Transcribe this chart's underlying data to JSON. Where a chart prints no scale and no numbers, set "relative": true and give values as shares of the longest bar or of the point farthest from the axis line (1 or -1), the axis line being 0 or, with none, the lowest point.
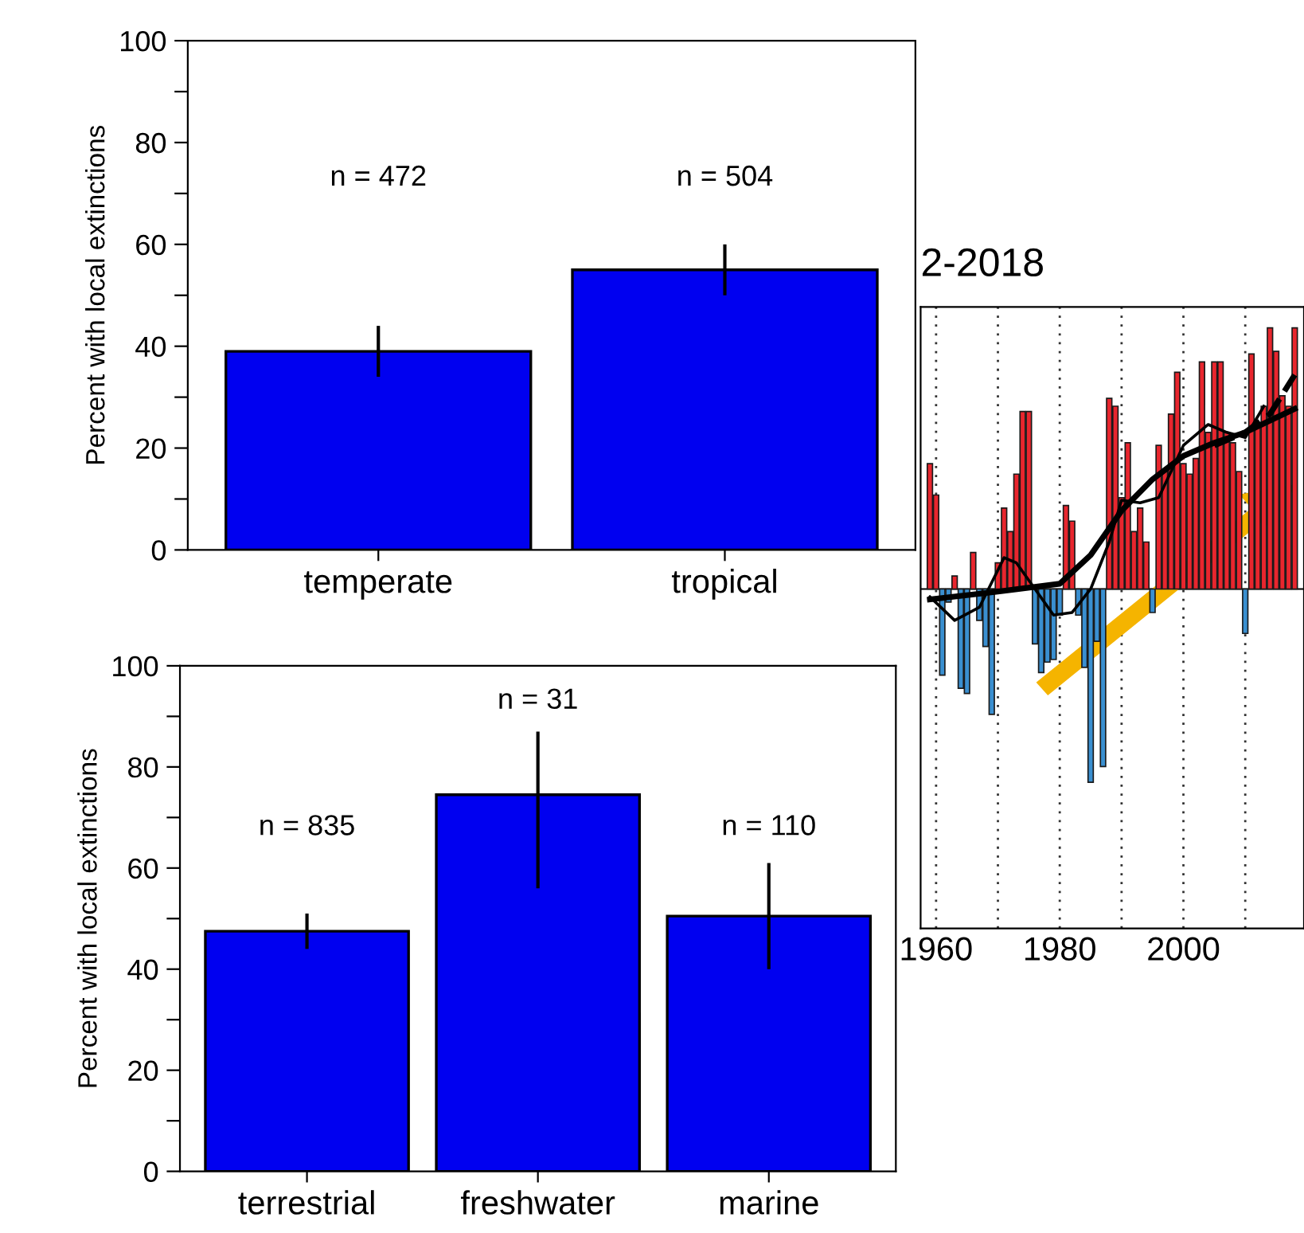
{
  "chart_data": [
    {
      "type": "bar",
      "ylabel": "Percent with local extinctions",
      "categories": [
        "temperate",
        "tropical"
      ],
      "series": [
        {
          "color": "#0000f0",
          "values": [
            39,
            55
          ],
          "errors": [
            [
              34,
              44
            ],
            [
              50,
              60
            ]
          ]
        }
      ],
      "ylim": [
        0,
        100
      ],
      "yticks": [
        0,
        {
          "value": 10,
          "label": null
        },
        20,
        {
          "value": 30,
          "label": null
        },
        40,
        {
          "value": 50,
          "label": null
        },
        60,
        {
          "value": 70,
          "label": null
        },
        80,
        {
          "value": 90,
          "label": null
        },
        100
      ],
      "annotations": [
        "n = 472",
        "n = 504"
      ],
      "grid": false,
      "legend": false
    },
    {
      "type": "bar",
      "ylabel": "Percent with local extinctions",
      "categories": [
        "terrestrial",
        "freshwater",
        "marine"
      ],
      "series": [
        {
          "color": "#0000f0",
          "values": [
            47.5,
            74.5,
            50.5
          ],
          "errors": [
            [
              44,
              51
            ],
            [
              56,
              87
            ],
            [
              40,
              61
            ]
          ]
        }
      ],
      "ylim": [
        0,
        100
      ],
      "yticks": [
        0,
        {
          "value": 10,
          "label": null
        },
        20,
        {
          "value": 30,
          "label": null
        },
        40,
        {
          "value": 50,
          "label": null
        },
        60,
        {
          "value": 70,
          "label": null
        },
        80,
        {
          "value": 90,
          "label": null
        },
        100
      ],
      "annotations": [
        "n = 835",
        "n = 31",
        "n = 110"
      ],
      "grid": false,
      "legend": false
    },
    {
      "type": "bar",
      "title": "2-2018",
      "relative": true,
      "grid": "x",
      "legend": false,
      "tick_labels": "x",
      "xlim": [
        1957.5,
        2019.5
      ],
      "xticks": [
        1960,
        {
          "value": 1970,
          "label": null
        },
        1980,
        {
          "value": 1990,
          "label": null
        },
        2000,
        {
          "value": 2010,
          "label": null
        }
      ],
      "x": [
        1959,
        1960,
        1961,
        1962,
        1963,
        1964,
        1965,
        1966,
        1967,
        1968,
        1969,
        1970,
        1971,
        1972,
        1973,
        1974,
        1975,
        1976,
        1977,
        1978,
        1979,
        1980,
        1981,
        1982,
        1983,
        1984,
        1985,
        1986,
        1987,
        1988,
        1989,
        1990,
        1991,
        1992,
        1993,
        1994,
        1995,
        1996,
        1997,
        1998,
        1999,
        2000,
        2001,
        2002,
        2003,
        2004,
        2005,
        2006,
        2007,
        2008,
        2009,
        2010,
        2011,
        2012,
        2013,
        2014,
        2015,
        2016,
        2017,
        2018
      ],
      "series": [
        {
          "type": "bar",
          "values": [
            0.48,
            0.36,
            -0.33,
            -0.05,
            0.05,
            -0.38,
            -0.4,
            0.14,
            -0.12,
            -0.22,
            -0.48,
            0.1,
            0.31,
            0.22,
            0.44,
            0.68,
            0.68,
            -0.21,
            -0.32,
            -0.28,
            -0.27,
            -0.1,
            0.32,
            0.26,
            -0.1,
            -0.3,
            -0.74,
            -0.2,
            -0.68,
            0.73,
            0.7,
            0.35,
            0.56,
            0.22,
            0.31,
            0.18,
            -0.09,
            0.55,
            0.45,
            0.67,
            0.83,
            0.48,
            0.44,
            0.5,
            0.87,
            0.6,
            0.87,
            0.87,
            0.6,
            0.56,
            0.45,
            -0.17,
            0.9,
            0.63,
            0.7,
            1.0,
            0.91,
            0.74,
            0.7,
            1.0
          ],
          "colors": [
            "#e8262e",
            "#e8262e",
            "#3a8fd0",
            "#3a8fd0",
            "#e8262e",
            "#3a8fd0",
            "#3a8fd0",
            "#e8262e",
            "#3a8fd0",
            "#3a8fd0",
            "#3a8fd0",
            "#e8262e",
            "#e8262e",
            "#e8262e",
            "#e8262e",
            "#e8262e",
            "#e8262e",
            "#3a8fd0",
            "#3a8fd0",
            "#3a8fd0",
            "#3a8fd0",
            "#3a8fd0",
            "#e8262e",
            "#e8262e",
            "#3a8fd0",
            "#3a8fd0",
            "#3a8fd0",
            "#3a8fd0",
            "#3a8fd0",
            "#e8262e",
            "#e8262e",
            "#e8262e",
            "#e8262e",
            "#e8262e",
            "#e8262e",
            "#e8262e",
            "#3a8fd0",
            "#e8262e",
            "#e8262e",
            "#e8262e",
            "#e8262e",
            "#e8262e",
            "#e8262e",
            "#e8262e",
            "#e8262e",
            "#e8262e",
            "#e8262e",
            "#e8262e",
            "#e8262e",
            "#e8262e",
            "#e8262e",
            "#3a8fd0",
            "#e8262e",
            "#e8262e",
            "#e8262e",
            "#e8262e",
            "#e8262e",
            "#e8262e",
            "#e8262e",
            "#e8262e"
          ]
        },
        {
          "type": "line",
          "color": "#000000",
          "line_style": "solid",
          "x": [
            1959,
            1963,
            1967,
            1971,
            1973,
            1976,
            1979,
            1982,
            1985,
            1988,
            1990,
            1993,
            1996,
            2000,
            2004,
            2007,
            2010,
            2013
          ],
          "values": [
            -0.03,
            -0.12,
            -0.07,
            0.12,
            0.1,
            0.0,
            -0.1,
            -0.09,
            0.0,
            0.18,
            0.34,
            0.33,
            0.35,
            0.55,
            0.63,
            0.6,
            0.58,
            0.7
          ]
        },
        {
          "type": "line",
          "color": "#000000",
          "line_style": "solid",
          "x": [
            1959,
            1970,
            1980,
            1985,
            1990,
            1995,
            2000,
            2005,
            2010,
            2018
          ],
          "values": [
            -0.04,
            -0.01,
            0.02,
            0.13,
            0.3,
            0.42,
            0.51,
            0.56,
            0.6,
            0.69
          ]
        },
        {
          "type": "line",
          "color": "#000000",
          "line_style": "dashed",
          "x": [
            2005,
            2010,
            2014,
            2018
          ],
          "values": [
            0.55,
            0.6,
            0.67,
            0.82
          ]
        }
      ]
    }
  ]
}
